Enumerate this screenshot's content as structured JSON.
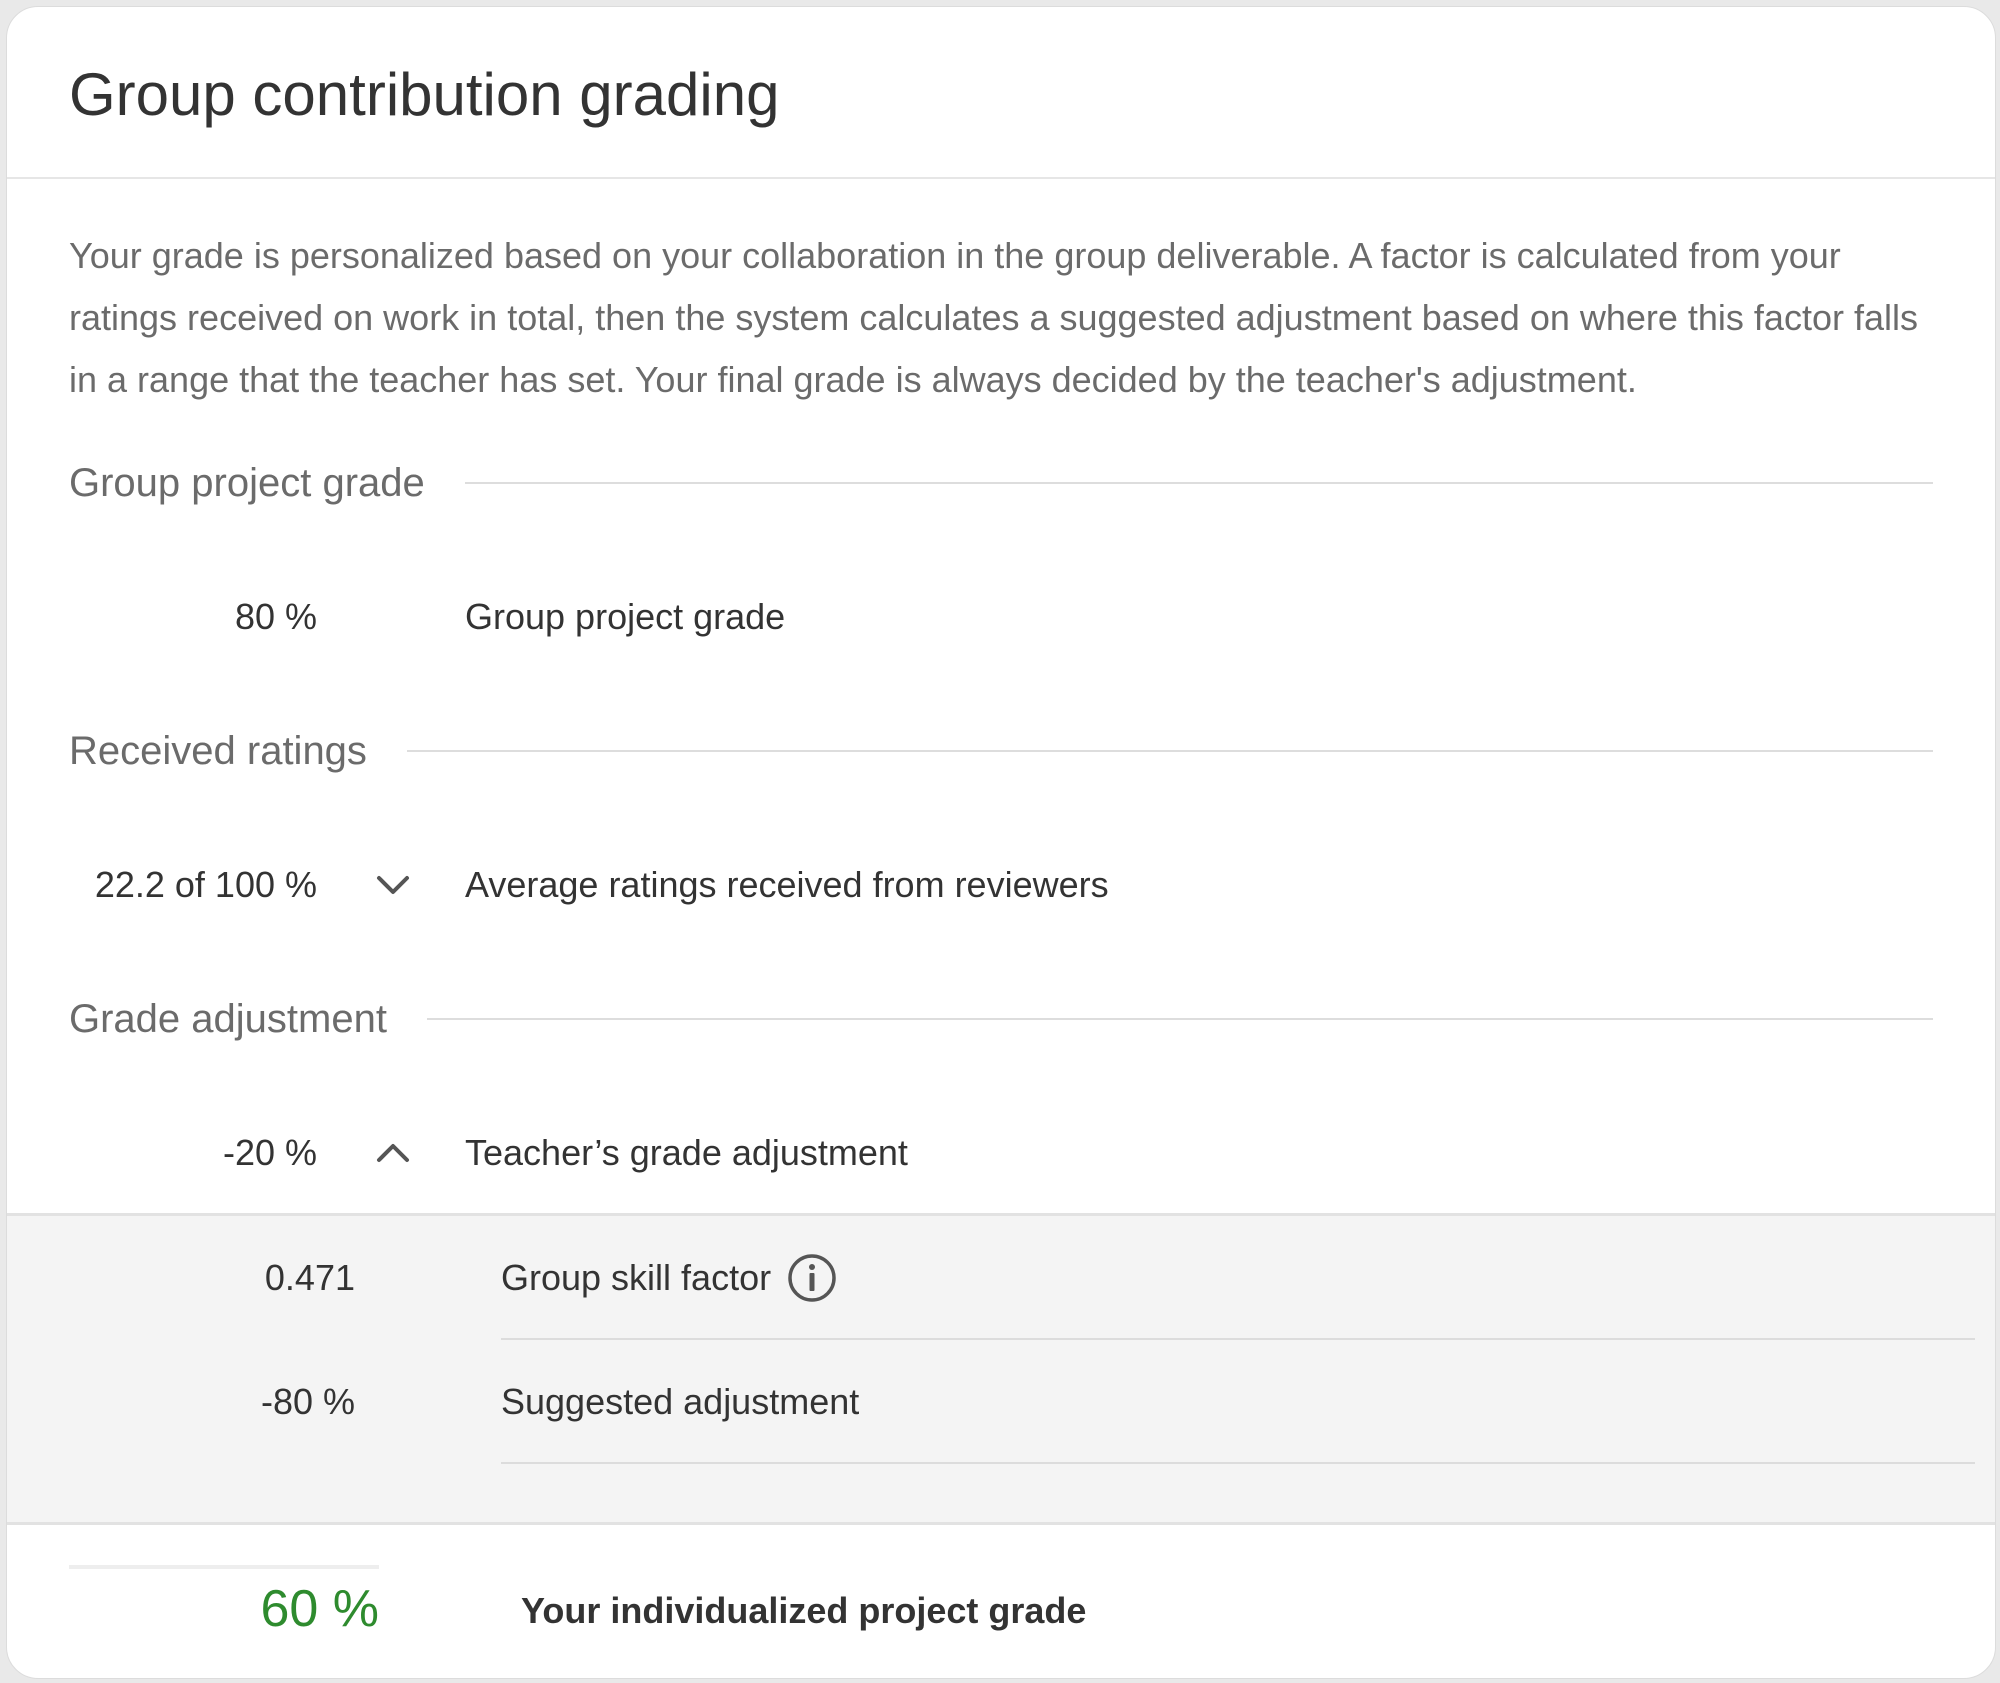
{
  "card": {
    "title": "Group contribution grading",
    "intro": "Your grade is personalized based on your collaboration in the group deliverable. A factor is calculated from your ratings received on work in total, then the system calculates a suggested adjustment based on where this factor falls in a range that the teacher has set. Your final grade is always decided by the teacher's adjustment."
  },
  "sections": {
    "group_project": {
      "title": "Group project grade",
      "value": "80 %",
      "label": "Group project grade"
    },
    "received_ratings": {
      "title": "Received ratings",
      "value": "22.2 of 100 %",
      "label": "Average ratings received from reviewers",
      "toggle_icon": "chevron-down-icon",
      "expanded": false
    },
    "grade_adjustment": {
      "title": "Grade adjustment",
      "value": "-20 %",
      "label": "Teacher’s grade adjustment",
      "toggle_icon": "chevron-up-icon",
      "expanded": true
    }
  },
  "adjustment_details": [
    {
      "value": "0.471",
      "label": "Group skill factor",
      "icon": "info-icon"
    },
    {
      "value": "-80 %",
      "label": "Suggested adjustment"
    }
  ],
  "final": {
    "value": "60 %",
    "label": "Your individualized project grade",
    "value_color": "#2e8b2e"
  }
}
